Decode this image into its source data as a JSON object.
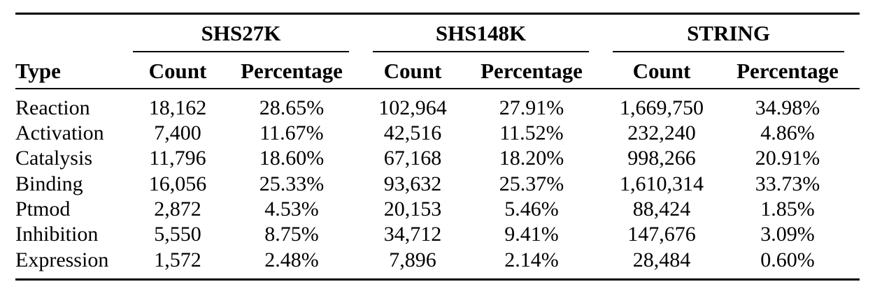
{
  "table": {
    "type_header": "Type",
    "groups": [
      "SHS27K",
      "SHS148K",
      "STRING"
    ],
    "subheaders": [
      "Count",
      "Percentage",
      "Count",
      "Percentage",
      "Count",
      "Percentage"
    ],
    "rows": [
      {
        "type": "Reaction",
        "values": [
          "18,162",
          "28.65%",
          "102,964",
          "27.91%",
          "1,669,750",
          "34.98%"
        ]
      },
      {
        "type": "Activation",
        "values": [
          "7,400",
          "11.67%",
          "42,516",
          "11.52%",
          "232,240",
          "4.86%"
        ]
      },
      {
        "type": "Catalysis",
        "values": [
          "11,796",
          "18.60%",
          "67,168",
          "18.20%",
          "998,266",
          "20.91%"
        ]
      },
      {
        "type": "Binding",
        "values": [
          "16,056",
          "25.33%",
          "93,632",
          "25.37%",
          "1,610,314",
          "33.73%"
        ]
      },
      {
        "type": "Ptmod",
        "values": [
          "2,872",
          "4.53%",
          "20,153",
          "5.46%",
          "88,424",
          "1.85%"
        ]
      },
      {
        "type": "Inhibition",
        "values": [
          "5,550",
          "8.75%",
          "34,712",
          "9.41%",
          "147,676",
          "3.09%"
        ]
      },
      {
        "type": "Expression",
        "values": [
          "1,572",
          "2.48%",
          "7,896",
          "2.14%",
          "28,484",
          "0.60%"
        ]
      }
    ]
  }
}
